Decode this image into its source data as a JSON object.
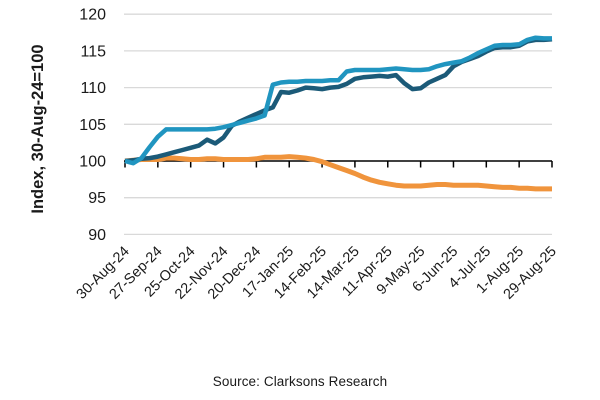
{
  "source": "Source: Clarksons Research",
  "chart_data": {
    "type": "line",
    "title": "",
    "xlabel": "",
    "ylabel": "Index, 30-Aug-24=100",
    "ylim": [
      90,
      120
    ],
    "yticks": [
      120,
      115,
      110,
      105,
      100,
      95,
      90
    ],
    "axis_cross_y": 100,
    "grid": "horizontal-only",
    "legend": "none",
    "xticks": [
      "30-Aug-24",
      "27-Sep-24",
      "25-Oct-24",
      "22-Nov-24",
      "20-Dec-24",
      "17-Jan-25",
      "14-Feb-25",
      "14-Mar-25",
      "11-Apr-25",
      "9-May-25",
      "6-Jun-25",
      "4-Jul-25",
      "1-Aug-25",
      "29-Aug-25"
    ],
    "x_frequency": "weekly, one tick label every 4 weeks",
    "colors": {
      "teal": "#2095c0",
      "dark_blue": "#1b5a78",
      "orange": "#f0943c",
      "gridline": "#d9d9d9",
      "axis": "#000000",
      "text": "#1a1a1a"
    },
    "series": [
      {
        "name": "orange",
        "color": "#f0943c",
        "stroke_width": 5,
        "values": [
          100.0,
          100.1,
          100.2,
          100.2,
          100.2,
          100.4,
          100.4,
          100.3,
          100.2,
          100.2,
          100.3,
          100.3,
          100.2,
          100.2,
          100.2,
          100.2,
          100.3,
          100.5,
          100.5,
          100.5,
          100.6,
          100.5,
          100.4,
          100.2,
          99.9,
          99.5,
          99.1,
          98.7,
          98.3,
          97.8,
          97.4,
          97.1,
          96.9,
          96.7,
          96.6,
          96.6,
          96.6,
          96.7,
          96.8,
          96.8,
          96.7,
          96.7,
          96.7,
          96.7,
          96.6,
          96.5,
          96.4,
          96.4,
          96.3,
          96.3,
          96.2,
          96.2,
          96.2
        ]
      },
      {
        "name": "dark-blue",
        "color": "#1b5a78",
        "stroke_width": 4.5,
        "values": [
          100.0,
          100.1,
          100.3,
          100.4,
          100.6,
          100.9,
          101.2,
          101.5,
          101.8,
          102.1,
          102.9,
          102.4,
          103.2,
          104.8,
          105.4,
          105.9,
          106.4,
          106.9,
          107.3,
          109.4,
          109.3,
          109.6,
          110.0,
          109.9,
          109.8,
          110.0,
          110.1,
          110.5,
          111.2,
          111.4,
          111.5,
          111.6,
          111.5,
          111.7,
          110.6,
          109.8,
          109.9,
          110.7,
          111.2,
          111.7,
          112.9,
          113.5,
          113.9,
          114.3,
          114.9,
          115.4,
          115.5,
          115.5,
          115.7,
          116.3,
          116.5,
          116.5,
          116.6
        ]
      },
      {
        "name": "teal",
        "color": "#2095c0",
        "stroke_width": 4.5,
        "values": [
          100.0,
          99.7,
          100.4,
          101.9,
          103.3,
          104.3,
          104.3,
          104.3,
          104.3,
          104.3,
          104.3,
          104.4,
          104.6,
          104.9,
          105.2,
          105.5,
          105.8,
          106.2,
          110.4,
          110.7,
          110.8,
          110.8,
          110.9,
          110.9,
          110.9,
          111.0,
          111.0,
          112.2,
          112.4,
          112.4,
          112.4,
          112.4,
          112.5,
          112.6,
          112.5,
          112.4,
          112.4,
          112.5,
          112.9,
          113.2,
          113.4,
          113.6,
          114.1,
          114.7,
          115.2,
          115.7,
          115.8,
          115.8,
          115.9,
          116.5,
          116.8,
          116.7,
          116.7
        ]
      }
    ]
  }
}
